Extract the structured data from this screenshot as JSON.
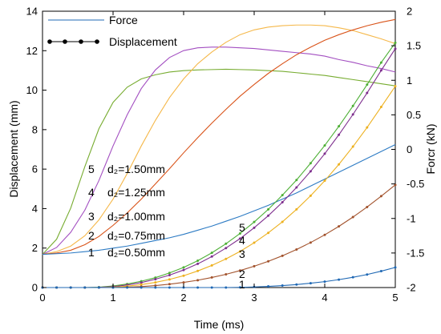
{
  "chart_data": {
    "type": "line",
    "xlabel": "Time (ms)",
    "ylabel_left": "Displacement (mm)",
    "ylabel_right": "Forcr (kN)",
    "xlim": [
      0,
      5
    ],
    "ylim_left": [
      0,
      14
    ],
    "ylim_right": [
      -2,
      2
    ],
    "x_ticks": [
      0,
      1,
      2,
      3,
      4,
      5
    ],
    "y_left_ticks": [
      0,
      2,
      4,
      6,
      8,
      10,
      12,
      14
    ],
    "y_right_ticks": [
      -2,
      -1.5,
      -1,
      -0.5,
      0,
      0.5,
      1,
      1.5,
      2
    ],
    "grid": false,
    "legend": {
      "placement": "top-left",
      "entries": [
        {
          "label": "Force",
          "style": "line"
        },
        {
          "label": "Displacement",
          "style": "line-with-markers"
        }
      ]
    },
    "annotations": [
      {
        "num": "5",
        "label": "d₂=1.50mm",
        "color": "#4daf35"
      },
      {
        "num": "4",
        "label": "d₂=1.25mm",
        "color": "#7e2f8e"
      },
      {
        "num": "3",
        "label": "d₂=1.00mm",
        "color": "#edb120"
      },
      {
        "num": "2",
        "label": "d₂=0.75mm",
        "color": "#a2522c"
      },
      {
        "num": "1",
        "label": "d₂=0.50mm",
        "color": "#1f68b4"
      }
    ],
    "force_series": [
      {
        "id": "5",
        "axis": "right",
        "color": "#77ac30",
        "x": [
          0,
          0.2,
          0.4,
          0.6,
          0.8,
          1.0,
          1.2,
          1.4,
          1.6,
          1.8,
          2.0,
          2.2,
          2.4,
          2.6,
          2.8,
          3.0,
          3.2,
          3.4,
          3.6,
          3.8,
          4.0,
          4.2,
          4.4,
          4.6,
          4.8,
          5.0
        ],
        "y": [
          -1.52,
          -1.3,
          -0.85,
          -0.25,
          0.3,
          0.68,
          0.9,
          1.02,
          1.08,
          1.12,
          1.14,
          1.15,
          1.155,
          1.16,
          1.155,
          1.15,
          1.14,
          1.13,
          1.11,
          1.09,
          1.07,
          1.04,
          1.01,
          0.98,
          0.95,
          0.92
        ]
      },
      {
        "id": "4",
        "axis": "right",
        "color": "#a34fc1",
        "x": [
          0,
          0.2,
          0.4,
          0.6,
          0.8,
          1.0,
          1.2,
          1.4,
          1.6,
          1.8,
          2.0,
          2.2,
          2.4,
          2.6,
          2.8,
          3.0,
          3.2,
          3.4,
          3.6,
          3.8,
          4.0,
          4.2,
          4.4,
          4.6,
          4.8,
          5.0
        ],
        "y": [
          -1.52,
          -1.42,
          -1.2,
          -0.88,
          -0.45,
          0.05,
          0.5,
          0.88,
          1.15,
          1.33,
          1.43,
          1.47,
          1.48,
          1.48,
          1.47,
          1.46,
          1.44,
          1.42,
          1.4,
          1.38,
          1.35,
          1.3,
          1.26,
          1.21,
          1.17,
          1.12
        ]
      },
      {
        "id": "3",
        "axis": "right",
        "color": "#f5b84a",
        "x": [
          0,
          0.2,
          0.4,
          0.6,
          0.8,
          1.0,
          1.2,
          1.4,
          1.6,
          1.8,
          2.0,
          2.2,
          2.4,
          2.6,
          2.8,
          3.0,
          3.2,
          3.4,
          3.6,
          3.8,
          4.0,
          4.2,
          4.4,
          4.6,
          4.8,
          5.0
        ],
        "y": [
          -1.52,
          -1.48,
          -1.4,
          -1.25,
          -1.02,
          -0.72,
          -0.35,
          0.05,
          0.42,
          0.75,
          1.02,
          1.24,
          1.41,
          1.55,
          1.66,
          1.73,
          1.77,
          1.79,
          1.8,
          1.8,
          1.79,
          1.76,
          1.72,
          1.66,
          1.6,
          1.53
        ]
      },
      {
        "id": "2",
        "axis": "right",
        "color": "#d95319",
        "x": [
          0,
          0.2,
          0.4,
          0.6,
          0.8,
          1.0,
          1.2,
          1.4,
          1.6,
          1.8,
          2.0,
          2.2,
          2.4,
          2.6,
          2.8,
          3.0,
          3.2,
          3.4,
          3.6,
          3.8,
          4.0,
          4.2,
          4.4,
          4.6,
          4.8,
          5.0
        ],
        "y": [
          -1.52,
          -1.5,
          -1.46,
          -1.38,
          -1.26,
          -1.1,
          -0.92,
          -0.72,
          -0.5,
          -0.28,
          -0.05,
          0.17,
          0.38,
          0.58,
          0.77,
          0.94,
          1.1,
          1.24,
          1.37,
          1.48,
          1.58,
          1.66,
          1.73,
          1.79,
          1.84,
          1.88
        ]
      },
      {
        "id": "1",
        "axis": "right",
        "color": "#2d7bc4",
        "x": [
          0,
          0.2,
          0.4,
          0.6,
          0.8,
          1.0,
          1.2,
          1.4,
          1.6,
          1.8,
          2.0,
          2.2,
          2.4,
          2.6,
          2.8,
          3.0,
          3.2,
          3.4,
          3.6,
          3.8,
          4.0,
          4.2,
          4.4,
          4.6,
          4.8,
          5.0
        ],
        "y": [
          -1.52,
          -1.51,
          -1.5,
          -1.48,
          -1.46,
          -1.43,
          -1.4,
          -1.36,
          -1.32,
          -1.28,
          -1.23,
          -1.17,
          -1.11,
          -1.04,
          -0.97,
          -0.89,
          -0.81,
          -0.72,
          -0.63,
          -0.53,
          -0.43,
          -0.33,
          -0.23,
          -0.13,
          -0.03,
          0.07
        ]
      }
    ],
    "displacement_series": [
      {
        "id": "5",
        "axis": "left",
        "color": "#4daf35",
        "x": [
          0,
          0.2,
          0.4,
          0.6,
          0.8,
          1.0,
          1.2,
          1.4,
          1.6,
          1.8,
          2.0,
          2.2,
          2.4,
          2.6,
          2.8,
          3.0,
          3.2,
          3.4,
          3.6,
          3.8,
          4.0,
          4.2,
          4.4,
          4.6,
          4.8,
          5.0
        ],
        "y": [
          0,
          0,
          0,
          0,
          0.02,
          0.08,
          0.18,
          0.32,
          0.5,
          0.74,
          1.02,
          1.36,
          1.76,
          2.22,
          2.74,
          3.32,
          3.96,
          4.68,
          5.45,
          6.3,
          7.2,
          8.17,
          9.2,
          10.28,
          11.4,
          12.4
        ]
      },
      {
        "id": "4",
        "axis": "left",
        "color": "#7e2f8e",
        "x": [
          0,
          0.2,
          0.4,
          0.6,
          0.8,
          1.0,
          1.2,
          1.4,
          1.6,
          1.8,
          2.0,
          2.2,
          2.4,
          2.6,
          2.8,
          3.0,
          3.2,
          3.4,
          3.6,
          3.8,
          4.0,
          4.2,
          4.4,
          4.6,
          4.8,
          5.0
        ],
        "y": [
          0,
          0,
          0,
          0,
          0.01,
          0.05,
          0.13,
          0.25,
          0.42,
          0.63,
          0.89,
          1.2,
          1.57,
          2.0,
          2.48,
          3.03,
          3.64,
          4.32,
          5.07,
          5.89,
          6.78,
          7.74,
          8.77,
          9.86,
          11.0,
          12.1
        ]
      },
      {
        "id": "3",
        "axis": "left",
        "color": "#edb120",
        "x": [
          0,
          0.2,
          0.4,
          0.6,
          0.8,
          1.0,
          1.2,
          1.4,
          1.6,
          1.8,
          2.0,
          2.2,
          2.4,
          2.6,
          2.8,
          3.0,
          3.2,
          3.4,
          3.6,
          3.8,
          4.0,
          4.2,
          4.4,
          4.6,
          4.8,
          5.0
        ],
        "y": [
          0,
          0,
          0,
          0,
          0,
          0.02,
          0.07,
          0.15,
          0.26,
          0.41,
          0.6,
          0.84,
          1.12,
          1.45,
          1.83,
          2.27,
          2.77,
          3.33,
          3.96,
          4.65,
          5.41,
          6.24,
          7.14,
          8.11,
          9.15,
          10.2
        ]
      },
      {
        "id": "2",
        "axis": "left",
        "color": "#a2522c",
        "x": [
          0,
          0.2,
          0.4,
          0.6,
          0.8,
          1.0,
          1.2,
          1.4,
          1.6,
          1.8,
          2.0,
          2.2,
          2.4,
          2.6,
          2.8,
          3.0,
          3.2,
          3.4,
          3.6,
          3.8,
          4.0,
          4.2,
          4.4,
          4.6,
          4.8,
          5.0
        ],
        "y": [
          0,
          0,
          0,
          0,
          0,
          0,
          0.02,
          0.05,
          0.1,
          0.17,
          0.26,
          0.37,
          0.51,
          0.67,
          0.86,
          1.08,
          1.33,
          1.61,
          1.93,
          2.28,
          2.67,
          3.1,
          3.57,
          4.08,
          4.63,
          5.2
        ]
      },
      {
        "id": "1",
        "axis": "left",
        "color": "#1f68b4",
        "x": [
          0,
          0.2,
          0.4,
          0.6,
          0.8,
          1.0,
          1.2,
          1.4,
          1.6,
          1.8,
          2.0,
          2.2,
          2.4,
          2.6,
          2.8,
          3.0,
          3.2,
          3.4,
          3.6,
          3.8,
          4.0,
          4.2,
          4.4,
          4.6,
          4.8,
          5.0
        ],
        "y": [
          0,
          0,
          0,
          0,
          0,
          0,
          0,
          0,
          0,
          0,
          0,
          0,
          0,
          0,
          0.01,
          0.03,
          0.06,
          0.1,
          0.15,
          0.22,
          0.3,
          0.4,
          0.52,
          0.66,
          0.83,
          1.02
        ]
      }
    ]
  }
}
